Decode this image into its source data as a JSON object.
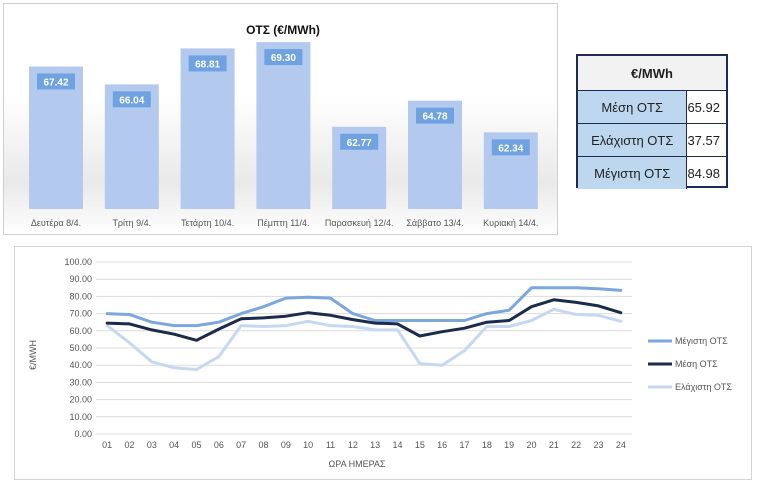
{
  "chart_data": [
    {
      "type": "bar",
      "title": "ΟΤΣ (€/MWh)",
      "categories": [
        "Δευτέρα 8/4.",
        "Τρίτη 9/4.",
        "Τετάρτη 10/4.",
        "Πέμπτη 11/4.",
        "Παρασκευή 12/4.",
        "Σάββατο 13/4.",
        "Κυριακή 14/4."
      ],
      "values": [
        67.42,
        66.04,
        68.81,
        69.3,
        62.77,
        64.78,
        62.34
      ],
      "data_labels": [
        "67.42",
        "66.04",
        "68.81",
        "69.30",
        "62.77",
        "64.78",
        "62.34"
      ],
      "bar_color": "#b4c9ee",
      "label_color": "#6fa2e0"
    },
    {
      "type": "line",
      "xlabel": "ΩΡΑ ΗΜΕΡΑΣ",
      "ylabel": "€/MWH",
      "ylim": [
        0,
        100
      ],
      "yticks": [
        "0.00",
        "10.00",
        "20.00",
        "30.00",
        "40.00",
        "50.00",
        "60.00",
        "70.00",
        "80.00",
        "90.00",
        "100.00"
      ],
      "x": [
        "01",
        "02",
        "03",
        "04",
        "05",
        "06",
        "07",
        "08",
        "09",
        "10",
        "11",
        "12",
        "13",
        "14",
        "15",
        "16",
        "17",
        "18",
        "19",
        "20",
        "21",
        "22",
        "23",
        "24"
      ],
      "grid": true,
      "legend_position": "right",
      "series": [
        {
          "name": "Μέγιστη ΟΤΣ",
          "color": "#7ba7dc",
          "values": [
            70,
            69.5,
            65,
            63,
            63,
            65,
            70,
            74,
            79,
            79.5,
            79,
            70,
            66,
            66,
            66,
            66,
            66,
            70,
            72,
            85,
            85,
            85,
            84.5,
            83.5
          ]
        },
        {
          "name": "Μέση ΟΤΣ",
          "color": "#1b2b4b",
          "values": [
            64.5,
            64,
            60.5,
            58,
            54.5,
            61,
            67,
            67.5,
            68.5,
            70.5,
            69,
            66.5,
            64.5,
            64,
            57,
            59.5,
            61.5,
            65,
            66,
            74,
            78,
            76.5,
            74.5,
            70.5
          ]
        },
        {
          "name": "Ελάχιστη ΟΤΣ",
          "color": "#c4d9f1",
          "values": [
            63,
            53,
            42,
            38.5,
            37.5,
            45,
            63,
            62.5,
            63,
            65.5,
            63,
            62.5,
            60.5,
            60.5,
            41,
            40,
            48.5,
            62.5,
            62.5,
            66,
            72.5,
            69.5,
            69,
            65.5
          ]
        }
      ]
    }
  ],
  "stats_table": {
    "header": "€/MWh",
    "rows": [
      {
        "label": "Μέση ΟΤΣ",
        "value": "65.92"
      },
      {
        "label": "Ελάχιστη ΟΤΣ",
        "value": "37.57"
      },
      {
        "label": "Μέγιστη ΟΤΣ",
        "value": "84.98"
      }
    ]
  }
}
